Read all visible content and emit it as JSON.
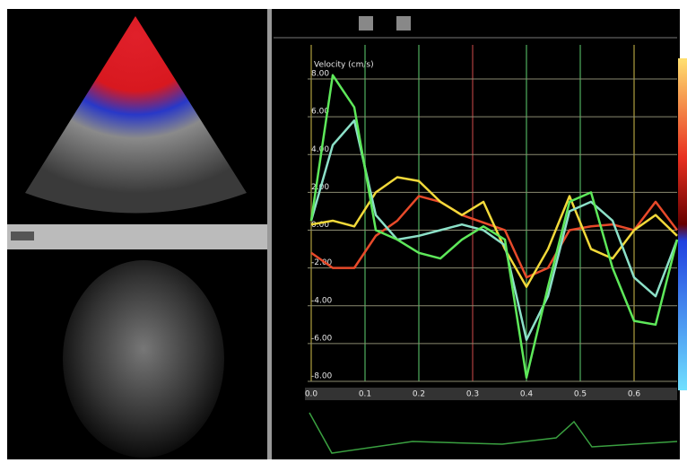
{
  "chart_data": {
    "type": "line",
    "title": "Velocity (cm/s)",
    "x": [
      0,
      0.04,
      0.08,
      0.12,
      0.16,
      0.2,
      0.24,
      0.28,
      0.32,
      0.36,
      0.4,
      0.44,
      0.48,
      0.52,
      0.56,
      0.6,
      0.64,
      0.68
    ],
    "series": [
      {
        "color": "#e84a2a",
        "values": [
          -1.2,
          -2,
          -2,
          -0.3,
          0.5,
          1.8,
          1.5,
          0.8,
          0.4,
          0,
          -2.5,
          -2,
          0,
          0.2,
          0.3,
          0,
          1.5,
          0
        ]
      },
      {
        "color": "#f2d93a",
        "values": [
          0.3,
          0.5,
          0.2,
          2,
          2.8,
          2.6,
          1.5,
          0.8,
          1.5,
          -1,
          -3,
          -1,
          1.8,
          -1,
          -1.5,
          0,
          0.8,
          -0.3
        ]
      },
      {
        "color": "#8ce0c8",
        "values": [
          0.5,
          4.5,
          5.8,
          0.8,
          -0.5,
          -0.3,
          0,
          0.3,
          0,
          -0.8,
          -5.8,
          -3.5,
          1,
          1.5,
          0.5,
          -2.5,
          -3.5,
          -0.5
        ]
      },
      {
        "color": "#5ee85a",
        "values": [
          0.5,
          8.2,
          6.5,
          0,
          -0.5,
          -1.2,
          -1.5,
          -0.5,
          0.2,
          -0.5,
          -7.8,
          -3,
          1.5,
          2,
          -2,
          -4.8,
          -5,
          -0.5
        ]
      }
    ],
    "xlim": [
      0,
      0.68
    ],
    "xticks": [
      {
        "value": 0,
        "label": "0.0"
      },
      {
        "value": 0.1,
        "label": "0.1"
      },
      {
        "value": 0.2,
        "label": "0.2"
      },
      {
        "value": 0.3,
        "label": "0.3"
      },
      {
        "value": 0.4,
        "label": "0.4"
      },
      {
        "value": 0.5,
        "label": "0.5"
      },
      {
        "value": 0.6,
        "label": "0.6"
      }
    ],
    "ylim": [
      -8,
      8
    ],
    "yticks": [
      {
        "value": 8,
        "label": "8.00"
      },
      {
        "value": 6,
        "label": "6.00"
      },
      {
        "value": 4,
        "label": "4.00"
      },
      {
        "value": 2,
        "label": "2.00"
      },
      {
        "value": 0,
        "label": "0.00"
      },
      {
        "value": -2,
        "label": "-2.00"
      },
      {
        "value": -4,
        "label": "-4.00"
      },
      {
        "value": -6,
        "label": "-6.00"
      },
      {
        "value": -8,
        "label": "-8.00"
      }
    ],
    "grid": true
  }
}
